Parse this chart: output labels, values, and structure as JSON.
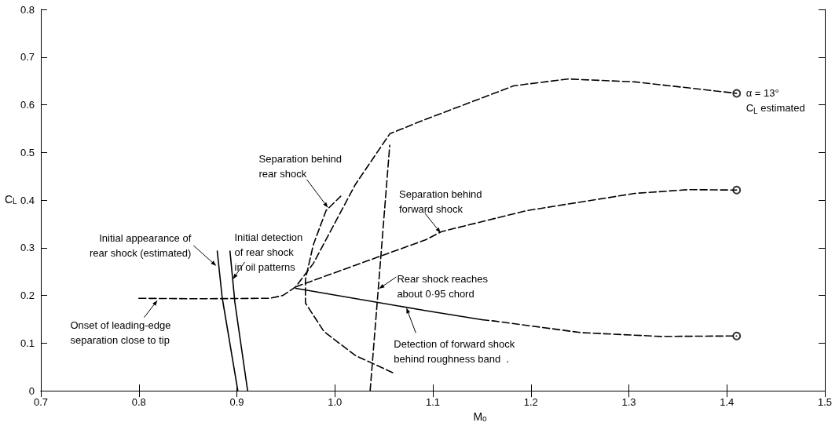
{
  "chart_data": {
    "type": "line",
    "xlabel": "M$_{o}$",
    "ylabel": "C$_{L}$",
    "xlim": [
      0.7,
      1.5
    ],
    "xticks": [
      0.7,
      0.8,
      0.9,
      {
        "value": 1,
        "label": "1.0"
      },
      1.1,
      1.2,
      1.3,
      1.4,
      1.5
    ],
    "ylim": [
      0,
      0.8
    ],
    "yticks": [
      0,
      0.1,
      0.2,
      0.3,
      0.4,
      0.5,
      0.6,
      0.7,
      0.8
    ],
    "grid": false,
    "series": [
      {
        "color": "#000000",
        "line_style": "dashed",
        "x": [
          0.8,
          0.86,
          0.934,
          0.947,
          0.96,
          0.978,
          1.021,
          1.056,
          1.087,
          1.183,
          1.238,
          1.306,
          1.41
        ],
        "values": [
          0.194,
          0.193,
          0.194,
          0.2,
          0.218,
          0.267,
          0.433,
          0.539,
          0.565,
          0.64,
          0.654,
          0.648,
          0.624
        ]
      },
      {
        "color": "#000000",
        "line_style": "dashed",
        "x": [
          1.059,
          1.021,
          0.989,
          0.97,
          0.97,
          0.978,
          0.991,
          1.006
        ],
        "values": [
          0.038,
          0.074,
          0.124,
          0.184,
          0.234,
          0.306,
          0.378,
          0.408
        ]
      },
      {
        "color": "#000000",
        "line_style": "dashed",
        "x": [
          0.96,
          1.093,
          1.109,
          1.196,
          1.306,
          1.361,
          1.41
        ],
        "values": [
          0.218,
          0.317,
          0.334,
          0.378,
          0.414,
          0.422,
          0.421
        ]
      },
      {
        "color": "#000000",
        "line_style": "solid",
        "x": [
          0.96,
          1.093,
          1.15
        ],
        "values": [
          0.215,
          0.168,
          0.149
        ]
      },
      {
        "color": "#000000",
        "line_style": "dashed",
        "x": [
          1.15,
          1.164,
          1.251,
          1.333,
          1.41
        ],
        "values": [
          0.149,
          0.146,
          0.122,
          0.114,
          0.115
        ]
      },
      {
        "color": "#000000",
        "line_style": "dashed",
        "x": [
          1.036,
          1.056
        ],
        "values": [
          0,
          0.515
        ]
      },
      {
        "color": "#000000",
        "line_style": "solid",
        "x": [
          0.88,
          0.885,
          0.901
        ],
        "values": [
          0.293,
          0.196,
          0
        ]
      },
      {
        "color": "#000000",
        "line_style": "solid",
        "x": [
          0.893,
          0.898,
          0.911
        ],
        "values": [
          0.293,
          0.185,
          0
        ]
      },
      {
        "type": "scatter",
        "marker": "circle",
        "color": "#000000",
        "x": [
          1.41,
          1.41,
          1.41
        ],
        "values": [
          0.624,
          0.421,
          0.115
        ]
      }
    ],
    "annotations": [
      {
        "text": "Initial appearance of\nrear shock (estimated)",
        "x": 0.879,
        "y": 0.262
      },
      {
        "text": "Initial detection\nof rear shock\nin oil patterns",
        "x": 0.896,
        "y": 0.234
      },
      {
        "text": "Onset of leading-edge\nseparation close to tip",
        "x": 0.819,
        "y": 0.19
      },
      {
        "text": "Separation behind\nrear shock",
        "x": 0.993,
        "y": 0.384
      },
      {
        "text": "Separation behind\nforward shock",
        "x": 1.108,
        "y": 0.331
      },
      {
        "text": "Rear shock reaches\nabout 0·95 chord",
        "x": 1.045,
        "y": 0.214
      },
      {
        "text": "Detection of forward shock\nbehind roughness band  .",
        "x": 1.073,
        "y": 0.174
      },
      {
        "text": "α = 13°\nC$_{L}$ estimated",
        "x": 1.41,
        "y": 0.624
      }
    ]
  }
}
